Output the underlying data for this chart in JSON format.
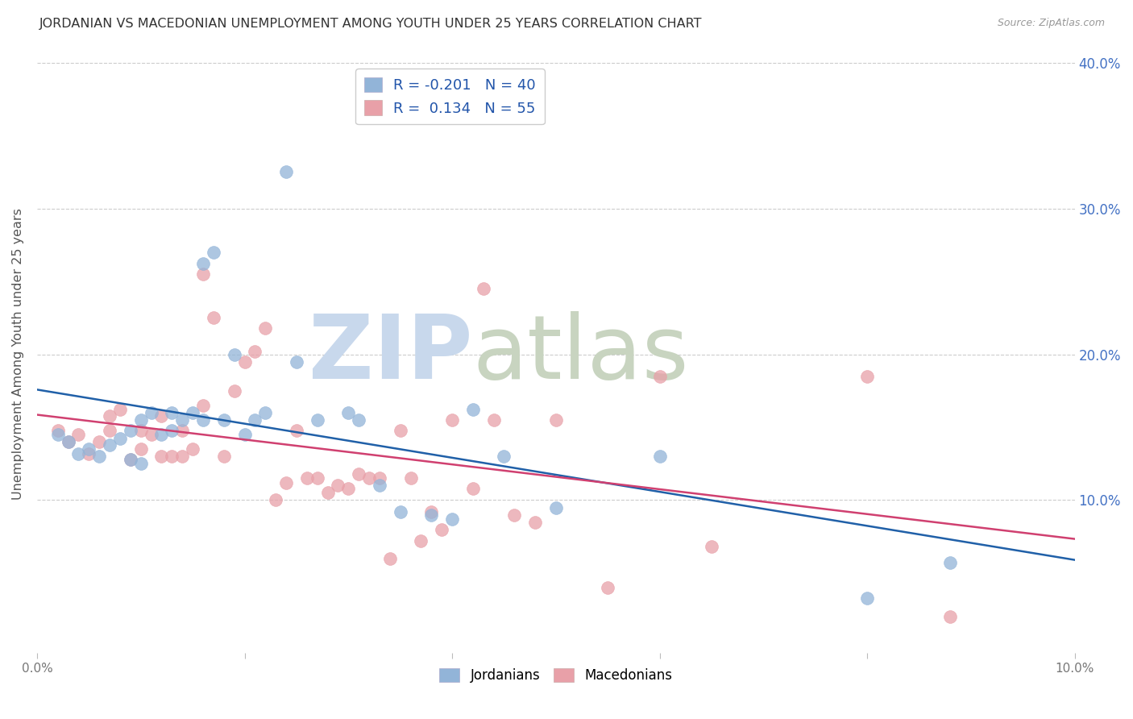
{
  "title": "JORDANIAN VS MACEDONIAN UNEMPLOYMENT AMONG YOUTH UNDER 25 YEARS CORRELATION CHART",
  "source": "Source: ZipAtlas.com",
  "ylabel": "Unemployment Among Youth under 25 years",
  "xlim": [
    0,
    0.1
  ],
  "ylim": [
    -0.005,
    0.405
  ],
  "yticks": [
    0.1,
    0.2,
    0.3,
    0.4
  ],
  "ytick_labels": [
    "10.0%",
    "20.0%",
    "30.0%",
    "40.0%"
  ],
  "xticks": [
    0.0,
    0.02,
    0.04,
    0.06,
    0.08,
    0.1
  ],
  "xtick_labels": [
    "0.0%",
    "",
    "",
    "",
    "",
    "10.0%"
  ],
  "legend_r1": "R = -0.201",
  "legend_n1": "N = 40",
  "legend_r2": "R =  0.134",
  "legend_n2": "N = 55",
  "jordianian_color": "#92b4d8",
  "macedonian_color": "#e8a0a8",
  "trend_blue": "#2060a8",
  "trend_pink": "#d04070",
  "watermark_zip": "ZIP",
  "watermark_atlas": "atlas",
  "watermark_color_zip": "#c8d8ec",
  "watermark_color_atlas": "#c8d4c0",
  "background_color": "#ffffff",
  "grid_color": "#cccccc",
  "title_color": "#333333",
  "axis_label_color": "#555555",
  "right_tick_color": "#4472c4",
  "bottom_legend_jordanians": "Jordanians",
  "bottom_legend_macedonians": "Macedonians",
  "jordianian_scatter_x": [
    0.002,
    0.003,
    0.004,
    0.005,
    0.006,
    0.007,
    0.008,
    0.009,
    0.009,
    0.01,
    0.01,
    0.011,
    0.012,
    0.013,
    0.013,
    0.014,
    0.015,
    0.016,
    0.016,
    0.017,
    0.018,
    0.019,
    0.02,
    0.021,
    0.022,
    0.024,
    0.025,
    0.027,
    0.03,
    0.031,
    0.033,
    0.035,
    0.038,
    0.04,
    0.042,
    0.045,
    0.05,
    0.06,
    0.08,
    0.088
  ],
  "jordianian_scatter_y": [
    0.145,
    0.14,
    0.132,
    0.135,
    0.13,
    0.138,
    0.142,
    0.128,
    0.148,
    0.125,
    0.155,
    0.16,
    0.145,
    0.148,
    0.16,
    0.155,
    0.16,
    0.262,
    0.155,
    0.27,
    0.155,
    0.2,
    0.145,
    0.155,
    0.16,
    0.325,
    0.195,
    0.155,
    0.16,
    0.155,
    0.11,
    0.092,
    0.09,
    0.087,
    0.162,
    0.13,
    0.095,
    0.13,
    0.033,
    0.057
  ],
  "macedonian_scatter_x": [
    0.002,
    0.003,
    0.004,
    0.005,
    0.006,
    0.007,
    0.007,
    0.008,
    0.009,
    0.01,
    0.01,
    0.011,
    0.012,
    0.012,
    0.013,
    0.014,
    0.014,
    0.015,
    0.016,
    0.016,
    0.017,
    0.018,
    0.019,
    0.02,
    0.021,
    0.022,
    0.023,
    0.024,
    0.025,
    0.026,
    0.027,
    0.028,
    0.029,
    0.03,
    0.031,
    0.032,
    0.033,
    0.034,
    0.035,
    0.036,
    0.037,
    0.038,
    0.039,
    0.04,
    0.042,
    0.043,
    0.044,
    0.046,
    0.048,
    0.05,
    0.055,
    0.06,
    0.065,
    0.08,
    0.088
  ],
  "macedonian_scatter_y": [
    0.148,
    0.14,
    0.145,
    0.132,
    0.14,
    0.158,
    0.148,
    0.162,
    0.128,
    0.135,
    0.148,
    0.145,
    0.13,
    0.158,
    0.13,
    0.13,
    0.148,
    0.135,
    0.255,
    0.165,
    0.225,
    0.13,
    0.175,
    0.195,
    0.202,
    0.218,
    0.1,
    0.112,
    0.148,
    0.115,
    0.115,
    0.105,
    0.11,
    0.108,
    0.118,
    0.115,
    0.115,
    0.06,
    0.148,
    0.115,
    0.072,
    0.092,
    0.08,
    0.155,
    0.108,
    0.245,
    0.155,
    0.09,
    0.085,
    0.155,
    0.04,
    0.185,
    0.068,
    0.185,
    0.02
  ]
}
